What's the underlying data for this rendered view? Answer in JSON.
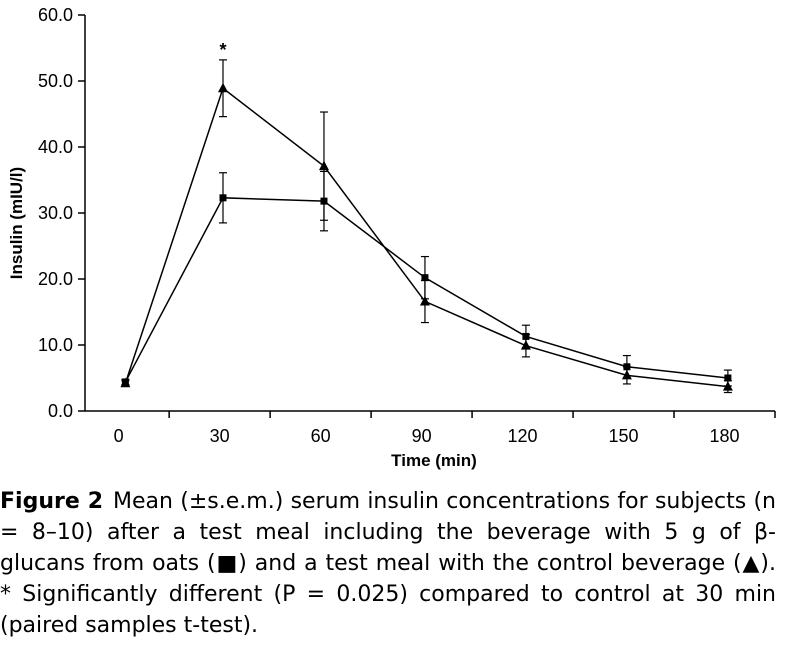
{
  "chart_data": {
    "type": "line",
    "title": "",
    "xlabel": "Time (min)",
    "ylabel": "Insulin (mIU/l)",
    "xlim": [
      -10,
      195
    ],
    "ylim": [
      0,
      60
    ],
    "x_ticks": [
      0,
      30,
      60,
      90,
      120,
      150,
      180
    ],
    "x_tick_labels": [
      "0",
      "30",
      "60",
      "90",
      "120",
      "150",
      "180"
    ],
    "y_ticks": [
      0,
      10,
      20,
      30,
      40,
      50,
      60
    ],
    "y_tick_labels": [
      "0.0",
      "10.0",
      "20.0",
      "30.0",
      "40.0",
      "50.0",
      "60.0"
    ],
    "grid": false,
    "series": [
      {
        "marker": "square",
        "x": [
          2,
          31,
          61,
          91,
          121,
          151,
          181
        ],
        "y": [
          4.4,
          32.3,
          31.8,
          20.2,
          11.3,
          6.7,
          5.0
        ],
        "err": [
          0.4,
          3.8,
          4.5,
          3.2,
          1.7,
          1.7,
          1.2
        ]
      },
      {
        "marker": "triangle",
        "x": [
          2,
          31,
          61,
          91,
          121,
          151,
          181
        ],
        "y": [
          4.2,
          48.9,
          37.1,
          16.6,
          9.9,
          5.4,
          3.7
        ],
        "err": [
          0.4,
          4.3,
          8.2,
          3.2,
          1.7,
          1.3,
          0.9
        ]
      }
    ],
    "annotations": [
      {
        "text": "*",
        "x": 31,
        "y": 53.2
      }
    ]
  },
  "caption": {
    "label": "Figure 2",
    "text": "Mean (±s.e.m.) serum insulin concentrations for subjects (n = 8–10) after a test meal including the beverage with 5 g of β-glucans from oats (■) and a test meal with the control beverage (▲). * Significantly different (P = 0.025) compared to control at 30 min (paired samples t-test)."
  }
}
